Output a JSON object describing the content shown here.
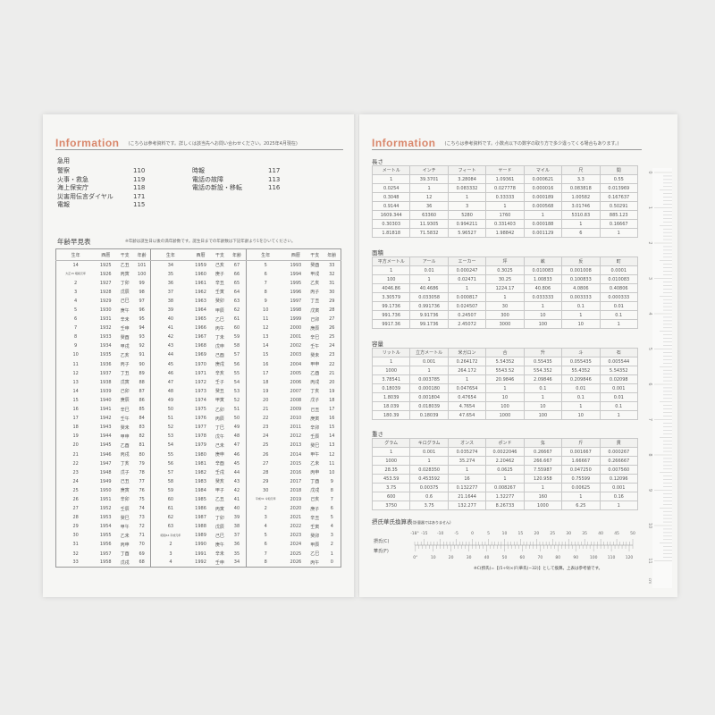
{
  "left": {
    "title": "Information",
    "note": "(こちらは参考資料です。詳しくは該当先へお問い合わせください。2025年4月現在)",
    "emergency_title": "急用",
    "emergency_col1": [
      [
        "警察",
        "110"
      ],
      [
        "火事・救急",
        "119"
      ],
      [
        "海上保安庁",
        "118"
      ],
      [
        "災害用伝言ダイヤル",
        "171"
      ],
      [
        "電報",
        "115"
      ]
    ],
    "emergency_col2": [
      [
        "時報",
        "117"
      ],
      [
        "電話の故障",
        "113"
      ],
      [
        "電話の新設・移転",
        "116"
      ]
    ],
    "age_title": "年齢早見表",
    "age_note": "※年齢は誕生日以後の満年齢数です。誕生日までの年齢数は下記年齢より1をひいてください。",
    "age_header": [
      "生年",
      "西暦",
      "干支",
      "年齢",
      "生年",
      "西暦",
      "干支",
      "年齢",
      "生年",
      "西暦",
      "干支",
      "年齢"
    ],
    "age_rows": [
      [
        "14",
        "1925",
        "乙丑",
        "101",
        "34",
        "1959",
        "己亥",
        "67",
        "5",
        "1993",
        "癸酉",
        "33"
      ],
      [
        "大正15 昭和元年",
        "1926",
        "丙寅",
        "100",
        "35",
        "1960",
        "庚子",
        "66",
        "6",
        "1994",
        "甲戌",
        "32"
      ],
      [
        "2",
        "1927",
        "丁卯",
        "99",
        "36",
        "1961",
        "辛丑",
        "65",
        "7",
        "1995",
        "乙亥",
        "31"
      ],
      [
        "3",
        "1928",
        "戊辰",
        "98",
        "37",
        "1962",
        "壬寅",
        "64",
        "8",
        "1996",
        "丙子",
        "30"
      ],
      [
        "4",
        "1929",
        "己巳",
        "97",
        "38",
        "1963",
        "癸卯",
        "63",
        "9",
        "1997",
        "丁丑",
        "29"
      ],
      [
        "5",
        "1930",
        "庚午",
        "96",
        "39",
        "1964",
        "甲辰",
        "62",
        "10",
        "1998",
        "戊寅",
        "28"
      ],
      [
        "6",
        "1931",
        "辛未",
        "95",
        "40",
        "1965",
        "乙巳",
        "61",
        "11",
        "1999",
        "己卯",
        "27"
      ],
      [
        "7",
        "1932",
        "壬申",
        "94",
        "41",
        "1966",
        "丙午",
        "60",
        "12",
        "2000",
        "庚辰",
        "26"
      ],
      [
        "8",
        "1933",
        "癸酉",
        "93",
        "42",
        "1967",
        "丁未",
        "59",
        "13",
        "2001",
        "辛巳",
        "25"
      ],
      [
        "9",
        "1934",
        "甲戌",
        "92",
        "43",
        "1968",
        "戊申",
        "58",
        "14",
        "2002",
        "壬午",
        "24"
      ],
      [
        "10",
        "1935",
        "乙亥",
        "91",
        "44",
        "1969",
        "己酉",
        "57",
        "15",
        "2003",
        "癸未",
        "23"
      ],
      [
        "11",
        "1936",
        "丙子",
        "90",
        "45",
        "1970",
        "庚戌",
        "56",
        "16",
        "2004",
        "甲申",
        "22"
      ],
      [
        "12",
        "1937",
        "丁丑",
        "89",
        "46",
        "1971",
        "辛亥",
        "55",
        "17",
        "2005",
        "乙酉",
        "21"
      ],
      [
        "13",
        "1938",
        "戊寅",
        "88",
        "47",
        "1972",
        "壬子",
        "54",
        "18",
        "2006",
        "丙戌",
        "20"
      ],
      [
        "14",
        "1939",
        "己卯",
        "87",
        "48",
        "1973",
        "癸丑",
        "53",
        "19",
        "2007",
        "丁亥",
        "19"
      ],
      [
        "15",
        "1940",
        "庚辰",
        "86",
        "49",
        "1974",
        "甲寅",
        "52",
        "20",
        "2008",
        "戊子",
        "18"
      ],
      [
        "16",
        "1941",
        "辛巳",
        "85",
        "50",
        "1975",
        "乙卯",
        "51",
        "21",
        "2009",
        "己丑",
        "17"
      ],
      [
        "17",
        "1942",
        "壬午",
        "84",
        "51",
        "1976",
        "丙辰",
        "50",
        "22",
        "2010",
        "庚寅",
        "16"
      ],
      [
        "18",
        "1943",
        "癸未",
        "83",
        "52",
        "1977",
        "丁巳",
        "49",
        "23",
        "2011",
        "辛卯",
        "15"
      ],
      [
        "19",
        "1944",
        "甲申",
        "82",
        "53",
        "1978",
        "戊午",
        "48",
        "24",
        "2012",
        "壬辰",
        "14"
      ],
      [
        "20",
        "1945",
        "乙酉",
        "81",
        "54",
        "1979",
        "己未",
        "47",
        "25",
        "2013",
        "癸巳",
        "13"
      ],
      [
        "21",
        "1946",
        "丙戌",
        "80",
        "55",
        "1980",
        "庚申",
        "46",
        "26",
        "2014",
        "甲午",
        "12"
      ],
      [
        "22",
        "1947",
        "丁亥",
        "79",
        "56",
        "1981",
        "辛酉",
        "45",
        "27",
        "2015",
        "乙未",
        "11"
      ],
      [
        "23",
        "1948",
        "戊子",
        "78",
        "57",
        "1982",
        "壬戌",
        "44",
        "28",
        "2016",
        "丙申",
        "10"
      ],
      [
        "24",
        "1949",
        "己丑",
        "77",
        "58",
        "1983",
        "癸亥",
        "43",
        "29",
        "2017",
        "丁酉",
        "9"
      ],
      [
        "25",
        "1950",
        "庚寅",
        "76",
        "59",
        "1984",
        "甲子",
        "42",
        "30",
        "2018",
        "戊戌",
        "8"
      ],
      [
        "26",
        "1951",
        "辛卯",
        "75",
        "60",
        "1985",
        "乙丑",
        "41",
        "平成31 令和元年",
        "2019",
        "己亥",
        "7"
      ],
      [
        "27",
        "1952",
        "壬辰",
        "74",
        "61",
        "1986",
        "丙寅",
        "40",
        "2",
        "2020",
        "庚子",
        "6"
      ],
      [
        "28",
        "1953",
        "癸巳",
        "73",
        "62",
        "1987",
        "丁卯",
        "39",
        "3",
        "2021",
        "辛丑",
        "5"
      ],
      [
        "29",
        "1954",
        "甲午",
        "72",
        "63",
        "1988",
        "戊辰",
        "38",
        "4",
        "2022",
        "壬寅",
        "4"
      ],
      [
        "30",
        "1955",
        "乙未",
        "71",
        "昭和64 平成元年",
        "1989",
        "己巳",
        "37",
        "5",
        "2023",
        "癸卯",
        "3"
      ],
      [
        "31",
        "1956",
        "丙申",
        "70",
        "2",
        "1990",
        "庚午",
        "36",
        "6",
        "2024",
        "甲辰",
        "2"
      ],
      [
        "32",
        "1957",
        "丁酉",
        "69",
        "3",
        "1991",
        "辛未",
        "35",
        "7",
        "2025",
        "乙巳",
        "1"
      ],
      [
        "33",
        "1958",
        "戊戌",
        "68",
        "4",
        "1992",
        "壬申",
        "34",
        "8",
        "2026",
        "丙午",
        "0"
      ]
    ]
  },
  "right": {
    "title": "Information",
    "note": "(こちらは参考資料です。小数点以下の数字の取り方で多少違ってくる場合もあります。)",
    "tables": [
      {
        "title": "長さ",
        "rows": [
          [
            "メートル",
            "インチ",
            "フィート",
            "ヤード",
            "マイル",
            "尺",
            "間"
          ],
          [
            "1",
            "39.3701",
            "3.28084",
            "1.09361",
            "0.000621",
            "3.3",
            "0.55"
          ],
          [
            "0.0254",
            "1",
            "0.083332",
            "0.027778",
            "0.000016",
            "0.083818",
            "0.013969"
          ],
          [
            "0.3048",
            "12",
            "1",
            "0.33333",
            "0.000189",
            "1.00582",
            "0.167637"
          ],
          [
            "0.9144",
            "36",
            "3",
            "1",
            "0.000568",
            "3.01746",
            "0.50291"
          ],
          [
            "1609.344",
            "63360",
            "5280",
            "1760",
            "1",
            "5310.83",
            "885.123"
          ],
          [
            "0.30303",
            "11.9305",
            "0.994211",
            "0.331403",
            "0.000188",
            "1",
            "0.16667"
          ],
          [
            "1.81818",
            "71.5832",
            "5.96527",
            "1.98842",
            "0.001129",
            "6",
            "1"
          ]
        ]
      },
      {
        "title": "面積",
        "rows": [
          [
            "平方メートル",
            "アール",
            "エーカー",
            "坪",
            "畝",
            "反",
            "町"
          ],
          [
            "1",
            "0.01",
            "0.000247",
            "0.3025",
            "0.010083",
            "0.001008",
            "0.0001"
          ],
          [
            "100",
            "1",
            "0.02471",
            "30.25",
            "1.00833",
            "0.100833",
            "0.010083"
          ],
          [
            "4046.86",
            "40.4686",
            "1",
            "1224.17",
            "40.806",
            "4.0806",
            "0.40806"
          ],
          [
            "3.30579",
            "0.033058",
            "0.000817",
            "1",
            "0.033333",
            "0.003333",
            "0.000333"
          ],
          [
            "99.1736",
            "0.991736",
            "0.024507",
            "30",
            "1",
            "0.1",
            "0.01"
          ],
          [
            "991.736",
            "9.91736",
            "0.24507",
            "300",
            "10",
            "1",
            "0.1"
          ],
          [
            "9917.36",
            "99.1736",
            "2.45072",
            "3000",
            "100",
            "10",
            "1"
          ]
        ]
      },
      {
        "title": "容量",
        "rows": [
          [
            "リットル",
            "立方メートル",
            "米ガロン",
            "合",
            "升",
            "斗",
            "石"
          ],
          [
            "1",
            "0.001",
            "0.264172",
            "5.54352",
            "0.55435",
            "0.055435",
            "0.005544"
          ],
          [
            "1000",
            "1",
            "264.172",
            "5543.52",
            "554.352",
            "55.4352",
            "5.54352"
          ],
          [
            "3.78541",
            "0.003785",
            "1",
            "20.9846",
            "2.09846",
            "0.209846",
            "0.02098"
          ],
          [
            "0.18039",
            "0.000180",
            "0.047654",
            "1",
            "0.1",
            "0.01",
            "0.001"
          ],
          [
            "1.8039",
            "0.001804",
            "0.47654",
            "10",
            "1",
            "0.1",
            "0.01"
          ],
          [
            "18.039",
            "0.018039",
            "4.7654",
            "100",
            "10",
            "1",
            "0.1"
          ],
          [
            "180.39",
            "0.18039",
            "47.654",
            "1000",
            "100",
            "10",
            "1"
          ]
        ]
      },
      {
        "title": "重さ",
        "rows": [
          [
            "グラム",
            "キログラム",
            "オンス",
            "ポンド",
            "匁",
            "斤",
            "貫"
          ],
          [
            "1",
            "0.001",
            "0.035274",
            "0.0022046",
            "0.26667",
            "0.001667",
            "0.000267"
          ],
          [
            "1000",
            "1",
            "35.274",
            "2.20462",
            "266.667",
            "1.66667",
            "0.266667"
          ],
          [
            "28.35",
            "0.028350",
            "1",
            "0.0625",
            "7.55987",
            "0.047250",
            "0.007560"
          ],
          [
            "453.59",
            "0.453592",
            "16",
            "1",
            "120.958",
            "0.75599",
            "0.12096"
          ],
          [
            "3.75",
            "0.00375",
            "0.132277",
            "0.008267",
            "1",
            "0.00625",
            "0.001"
          ],
          [
            "600",
            "0.6",
            "21.1644",
            "1.32277",
            "160",
            "1",
            "0.16"
          ],
          [
            "3750",
            "3.75",
            "132.277",
            "8.26733",
            "1000",
            "6.25",
            "1"
          ]
        ]
      }
    ],
    "temp": {
      "title": "摂氏華氏換算表",
      "title_note": "(計量器ではありません)",
      "c_label": "摂氏(C)",
      "f_label": "華氏(F)",
      "c_ticks": [
        "-18°",
        "-15",
        "-10",
        "-5",
        "0",
        "5",
        "10",
        "15",
        "20",
        "25",
        "30",
        "35",
        "40",
        "45",
        "50"
      ],
      "f_ticks": [
        "0°",
        "10",
        "20",
        "30",
        "40",
        "50",
        "60",
        "70",
        "80",
        "90",
        "100",
        "110",
        "120"
      ],
      "formula": "※C(摂氏)=【(5÷9)×(F(華氏)−32)】として換算。上表は参考値です。"
    },
    "ruler": {
      "labels": [
        "0",
        "1",
        "2",
        "3",
        "4",
        "5",
        "6",
        "7",
        "8",
        "9",
        "10",
        "11"
      ],
      "unit": "cm"
    }
  },
  "colors": {
    "accent": "#d9866a"
  }
}
